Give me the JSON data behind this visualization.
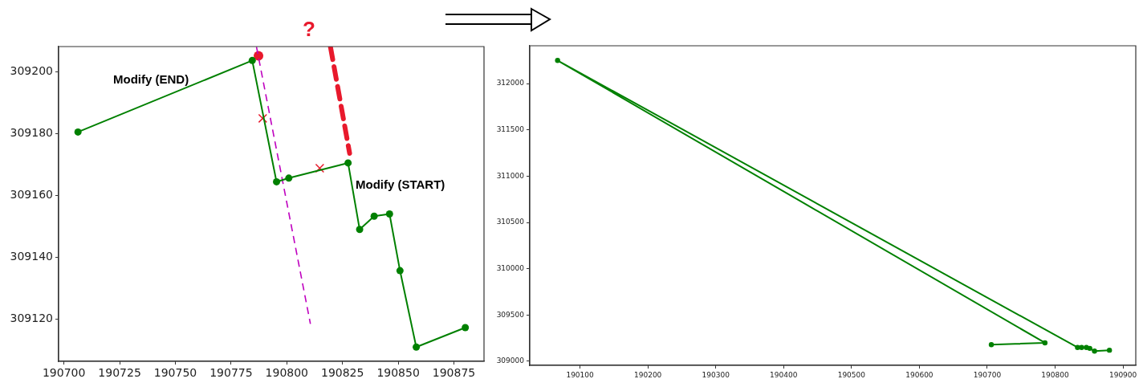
{
  "chart_data": [
    {
      "type": "line",
      "xlim": [
        190697.6,
        190888.5
      ],
      "xticks": [
        190700,
        190725,
        190750,
        190775,
        190800,
        190825,
        190850,
        190875
      ],
      "ylim": [
        309106.4,
        309208.1
      ],
      "yticks": [
        309120,
        309140,
        309160,
        309180,
        309200
      ],
      "grid": false,
      "marker": "circle",
      "annotations": [
        "Modify (END)",
        "Modify (START)",
        "?"
      ],
      "series": [
        {
          "color": "#008000",
          "x": [
            190706.3,
            190784.5,
            190795.4,
            190800.9,
            190827.5,
            190832.7,
            190839.2,
            190846.1,
            190850.8,
            190858.1,
            190880.1
          ],
          "values": [
            309180.5,
            309203.6,
            309164.4,
            309165.6,
            309170.5,
            309149.0,
            309153.3,
            309154.0,
            309135.7,
            309111.0,
            309117.3
          ]
        },
        {
          "color": "#bf00bf",
          "marker": "none",
          "line_style": "dashed",
          "x": [
            190786.4,
            190810.6
          ],
          "values": [
            309208,
            309118.5
          ]
        },
        {
          "color": "#e8192c",
          "marker": "none",
          "line_style": "dashed",
          "x": [
            190819.6,
            190828.2
          ],
          "values": [
            309208,
            309173.6
          ]
        },
        {
          "type": "scatter",
          "color": "#e8192c",
          "marker": "cross",
          "x": [
            190789.2,
            190814.8
          ],
          "values": [
            309184.9,
            309168.8
          ]
        },
        {
          "type": "scatter",
          "color": "#e8192c",
          "marker": "circle",
          "x": [
            190787.3
          ],
          "values": [
            309205.1
          ]
        }
      ]
    },
    {
      "type": "line",
      "xlim": [
        190026,
        190918.8
      ],
      "xticks": [
        190100,
        190200,
        190300,
        190400,
        190500,
        190600,
        190700,
        190800,
        190900
      ],
      "ylim": [
        308956.5,
        312408.7
      ],
      "yticks": [
        309000,
        309500,
        310000,
        310500,
        311000,
        311500,
        312000
      ],
      "grid": false,
      "marker": "circle",
      "series": [
        {
          "color": "#008000",
          "x": [
            190706,
            190785,
            190067,
            190833,
            190839,
            190846,
            190851,
            190858,
            190880
          ],
          "values": [
            309180,
            309200,
            312250,
            309150,
            309150,
            309150,
            309140,
            309110,
            309120
          ]
        }
      ]
    }
  ]
}
